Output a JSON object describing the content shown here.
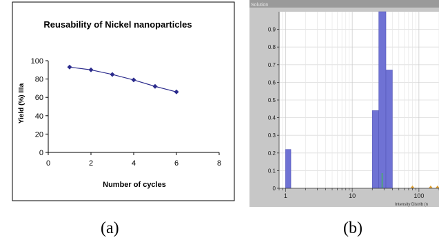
{
  "chart_data": [
    {
      "type": "line",
      "title": "Reusability of Nickel nanoparticles",
      "xlabel": "Number of cycles",
      "ylabel": "Yield (%) IIIa",
      "xlim": [
        0,
        8
      ],
      "ylim": [
        0,
        100
      ],
      "xticks": [
        0,
        2,
        4,
        6,
        8
      ],
      "yticks": [
        0,
        20,
        40,
        60,
        80,
        100
      ],
      "grid": false,
      "series": [
        {
          "x": [
            1,
            2,
            3,
            4,
            5,
            6
          ],
          "y": [
            93,
            90,
            85,
            79,
            72,
            66
          ],
          "color": "#2b2b8c",
          "marker": "diamond"
        }
      ]
    },
    {
      "type": "bar",
      "window_label": "Solution",
      "xlabel": "Intensity Distrib (n",
      "xscale": "log",
      "xlim": [
        0.8,
        200
      ],
      "ylim": [
        0,
        1
      ],
      "yticks": [
        0,
        0.1,
        0.2,
        0.3,
        0.4,
        0.5,
        0.6,
        0.7,
        0.8,
        0.9
      ],
      "ytick_labels": [
        "0",
        "0.1",
        "0.2",
        "0.3",
        "0.4",
        "0.5",
        "0.6",
        "0.7",
        "0.8",
        "0.9"
      ],
      "xtick_labels": [
        "1",
        "10",
        "100"
      ],
      "bar_color": "#6f72d4",
      "bars": [
        {
          "x0": 1.0,
          "x1": 1.2,
          "value": 0.22
        },
        {
          "x0": 20,
          "x1": 25,
          "value": 0.44
        },
        {
          "x0": 25,
          "x1": 32,
          "value": 1.0
        },
        {
          "x0": 32,
          "x1": 40,
          "value": 0.67
        }
      ],
      "markers_x": [
        80,
        150,
        190
      ],
      "cursor_x": 28
    }
  ],
  "captions": {
    "a": "(a)",
    "b": "(b)"
  }
}
